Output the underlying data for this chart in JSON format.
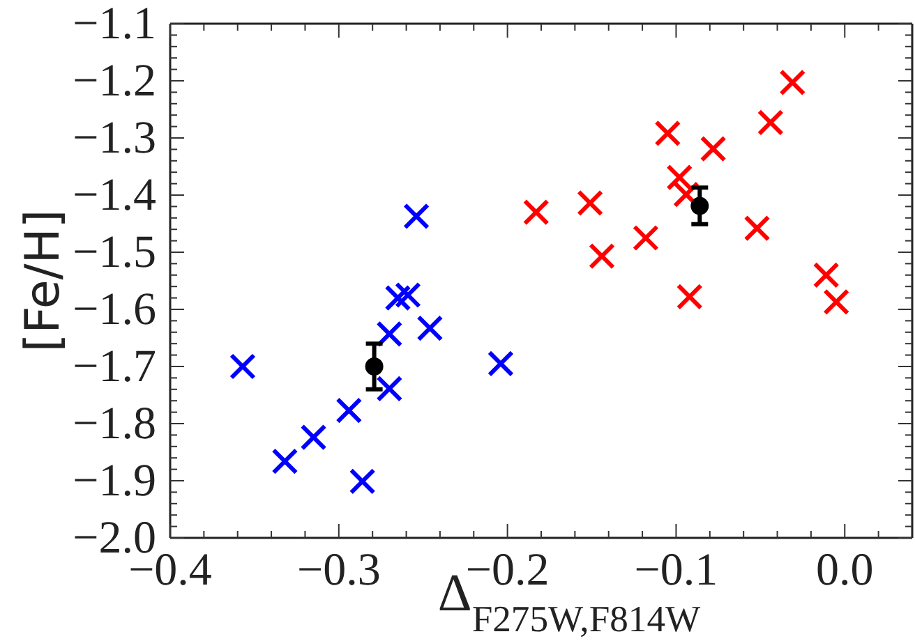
{
  "chart_data": {
    "type": "scatter",
    "xlabel": "Δ$_{F275W,F814W}$",
    "ylabel": "[Fe/H]",
    "xlim": [
      -0.4,
      0.04
    ],
    "ylim": [
      -2.0,
      -1.1
    ],
    "xticks": [
      {
        "value": -0.4,
        "label": "−0.4"
      },
      {
        "value": -0.38,
        "label": null
      },
      {
        "value": -0.36,
        "label": null
      },
      {
        "value": -0.34,
        "label": null
      },
      {
        "value": -0.32,
        "label": null
      },
      {
        "value": -0.3,
        "label": "−0.3"
      },
      {
        "value": -0.28,
        "label": null
      },
      {
        "value": -0.26,
        "label": null
      },
      {
        "value": -0.24,
        "label": null
      },
      {
        "value": -0.22,
        "label": null
      },
      {
        "value": -0.2,
        "label": "−0.2"
      },
      {
        "value": -0.18,
        "label": null
      },
      {
        "value": -0.16,
        "label": null
      },
      {
        "value": -0.14,
        "label": null
      },
      {
        "value": -0.12,
        "label": null
      },
      {
        "value": -0.1,
        "label": "−0.1"
      },
      {
        "value": -0.08,
        "label": null
      },
      {
        "value": -0.06,
        "label": null
      },
      {
        "value": -0.04,
        "label": null
      },
      {
        "value": -0.02,
        "label": null
      },
      {
        "value": 0,
        "label": "0.0"
      },
      {
        "value": 0.02,
        "label": null
      }
    ],
    "yticks": [
      {
        "value": -2,
        "label": "−2.0"
      },
      {
        "value": -1.98,
        "label": null
      },
      {
        "value": -1.96,
        "label": null
      },
      {
        "value": -1.94,
        "label": null
      },
      {
        "value": -1.92,
        "label": null
      },
      {
        "value": -1.9,
        "label": "−1.9"
      },
      {
        "value": -1.88,
        "label": null
      },
      {
        "value": -1.86,
        "label": null
      },
      {
        "value": -1.84,
        "label": null
      },
      {
        "value": -1.82,
        "label": null
      },
      {
        "value": -1.8,
        "label": "−1.8"
      },
      {
        "value": -1.78,
        "label": null
      },
      {
        "value": -1.76,
        "label": null
      },
      {
        "value": -1.74,
        "label": null
      },
      {
        "value": -1.72,
        "label": null
      },
      {
        "value": -1.7,
        "label": "−1.7"
      },
      {
        "value": -1.68,
        "label": null
      },
      {
        "value": -1.66,
        "label": null
      },
      {
        "value": -1.64,
        "label": null
      },
      {
        "value": -1.62,
        "label": null
      },
      {
        "value": -1.6,
        "label": "−1.6"
      },
      {
        "value": -1.58,
        "label": null
      },
      {
        "value": -1.56,
        "label": null
      },
      {
        "value": -1.54,
        "label": null
      },
      {
        "value": -1.52,
        "label": null
      },
      {
        "value": -1.5,
        "label": "−1.5"
      },
      {
        "value": -1.48,
        "label": null
      },
      {
        "value": -1.46,
        "label": null
      },
      {
        "value": -1.44,
        "label": null
      },
      {
        "value": -1.42,
        "label": null
      },
      {
        "value": -1.4,
        "label": "−1.4"
      },
      {
        "value": -1.38,
        "label": null
      },
      {
        "value": -1.36,
        "label": null
      },
      {
        "value": -1.34,
        "label": null
      },
      {
        "value": -1.32,
        "label": null
      },
      {
        "value": -1.3,
        "label": "−1.3"
      },
      {
        "value": -1.28,
        "label": null
      },
      {
        "value": -1.26,
        "label": null
      },
      {
        "value": -1.24,
        "label": null
      },
      {
        "value": -1.22,
        "label": null
      },
      {
        "value": -1.2,
        "label": "−1.2"
      },
      {
        "value": -1.18,
        "label": null
      },
      {
        "value": -1.16,
        "label": null
      },
      {
        "value": -1.14,
        "label": null
      },
      {
        "value": -1.12,
        "label": null
      },
      {
        "value": -1.1,
        "label": "−1.1"
      }
    ],
    "grid": false,
    "series": [
      {
        "color": "#0000ff",
        "marker": "cross",
        "x": [
          -0.357,
          -0.332,
          -0.315,
          -0.294,
          -0.286,
          -0.27,
          -0.27,
          -0.265,
          -0.259,
          -0.254,
          -0.246,
          -0.204
        ],
        "values": [
          -1.7,
          -1.866,
          -1.824,
          -1.777,
          -1.901,
          -1.643,
          -1.739,
          -1.58,
          -1.575,
          -1.437,
          -1.633,
          -1.695
        ]
      },
      {
        "color": "#ff0000",
        "marker": "cross",
        "x": [
          -0.183,
          -0.151,
          -0.144,
          -0.118,
          -0.105,
          -0.098,
          -0.094,
          -0.092,
          -0.078,
          -0.052,
          -0.044,
          -0.031,
          -0.011,
          -0.005
        ],
        "values": [
          -1.43,
          -1.414,
          -1.507,
          -1.475,
          -1.292,
          -1.369,
          -1.399,
          -1.578,
          -1.319,
          -1.458,
          -1.273,
          -1.203,
          -1.54,
          -1.587
        ]
      },
      {
        "color": "#000000",
        "marker": "circle",
        "x": [
          -0.279,
          -0.086
        ],
        "values": [
          -1.7,
          -1.419
        ],
        "errors": [
          0.04,
          0.032
        ]
      }
    ]
  }
}
